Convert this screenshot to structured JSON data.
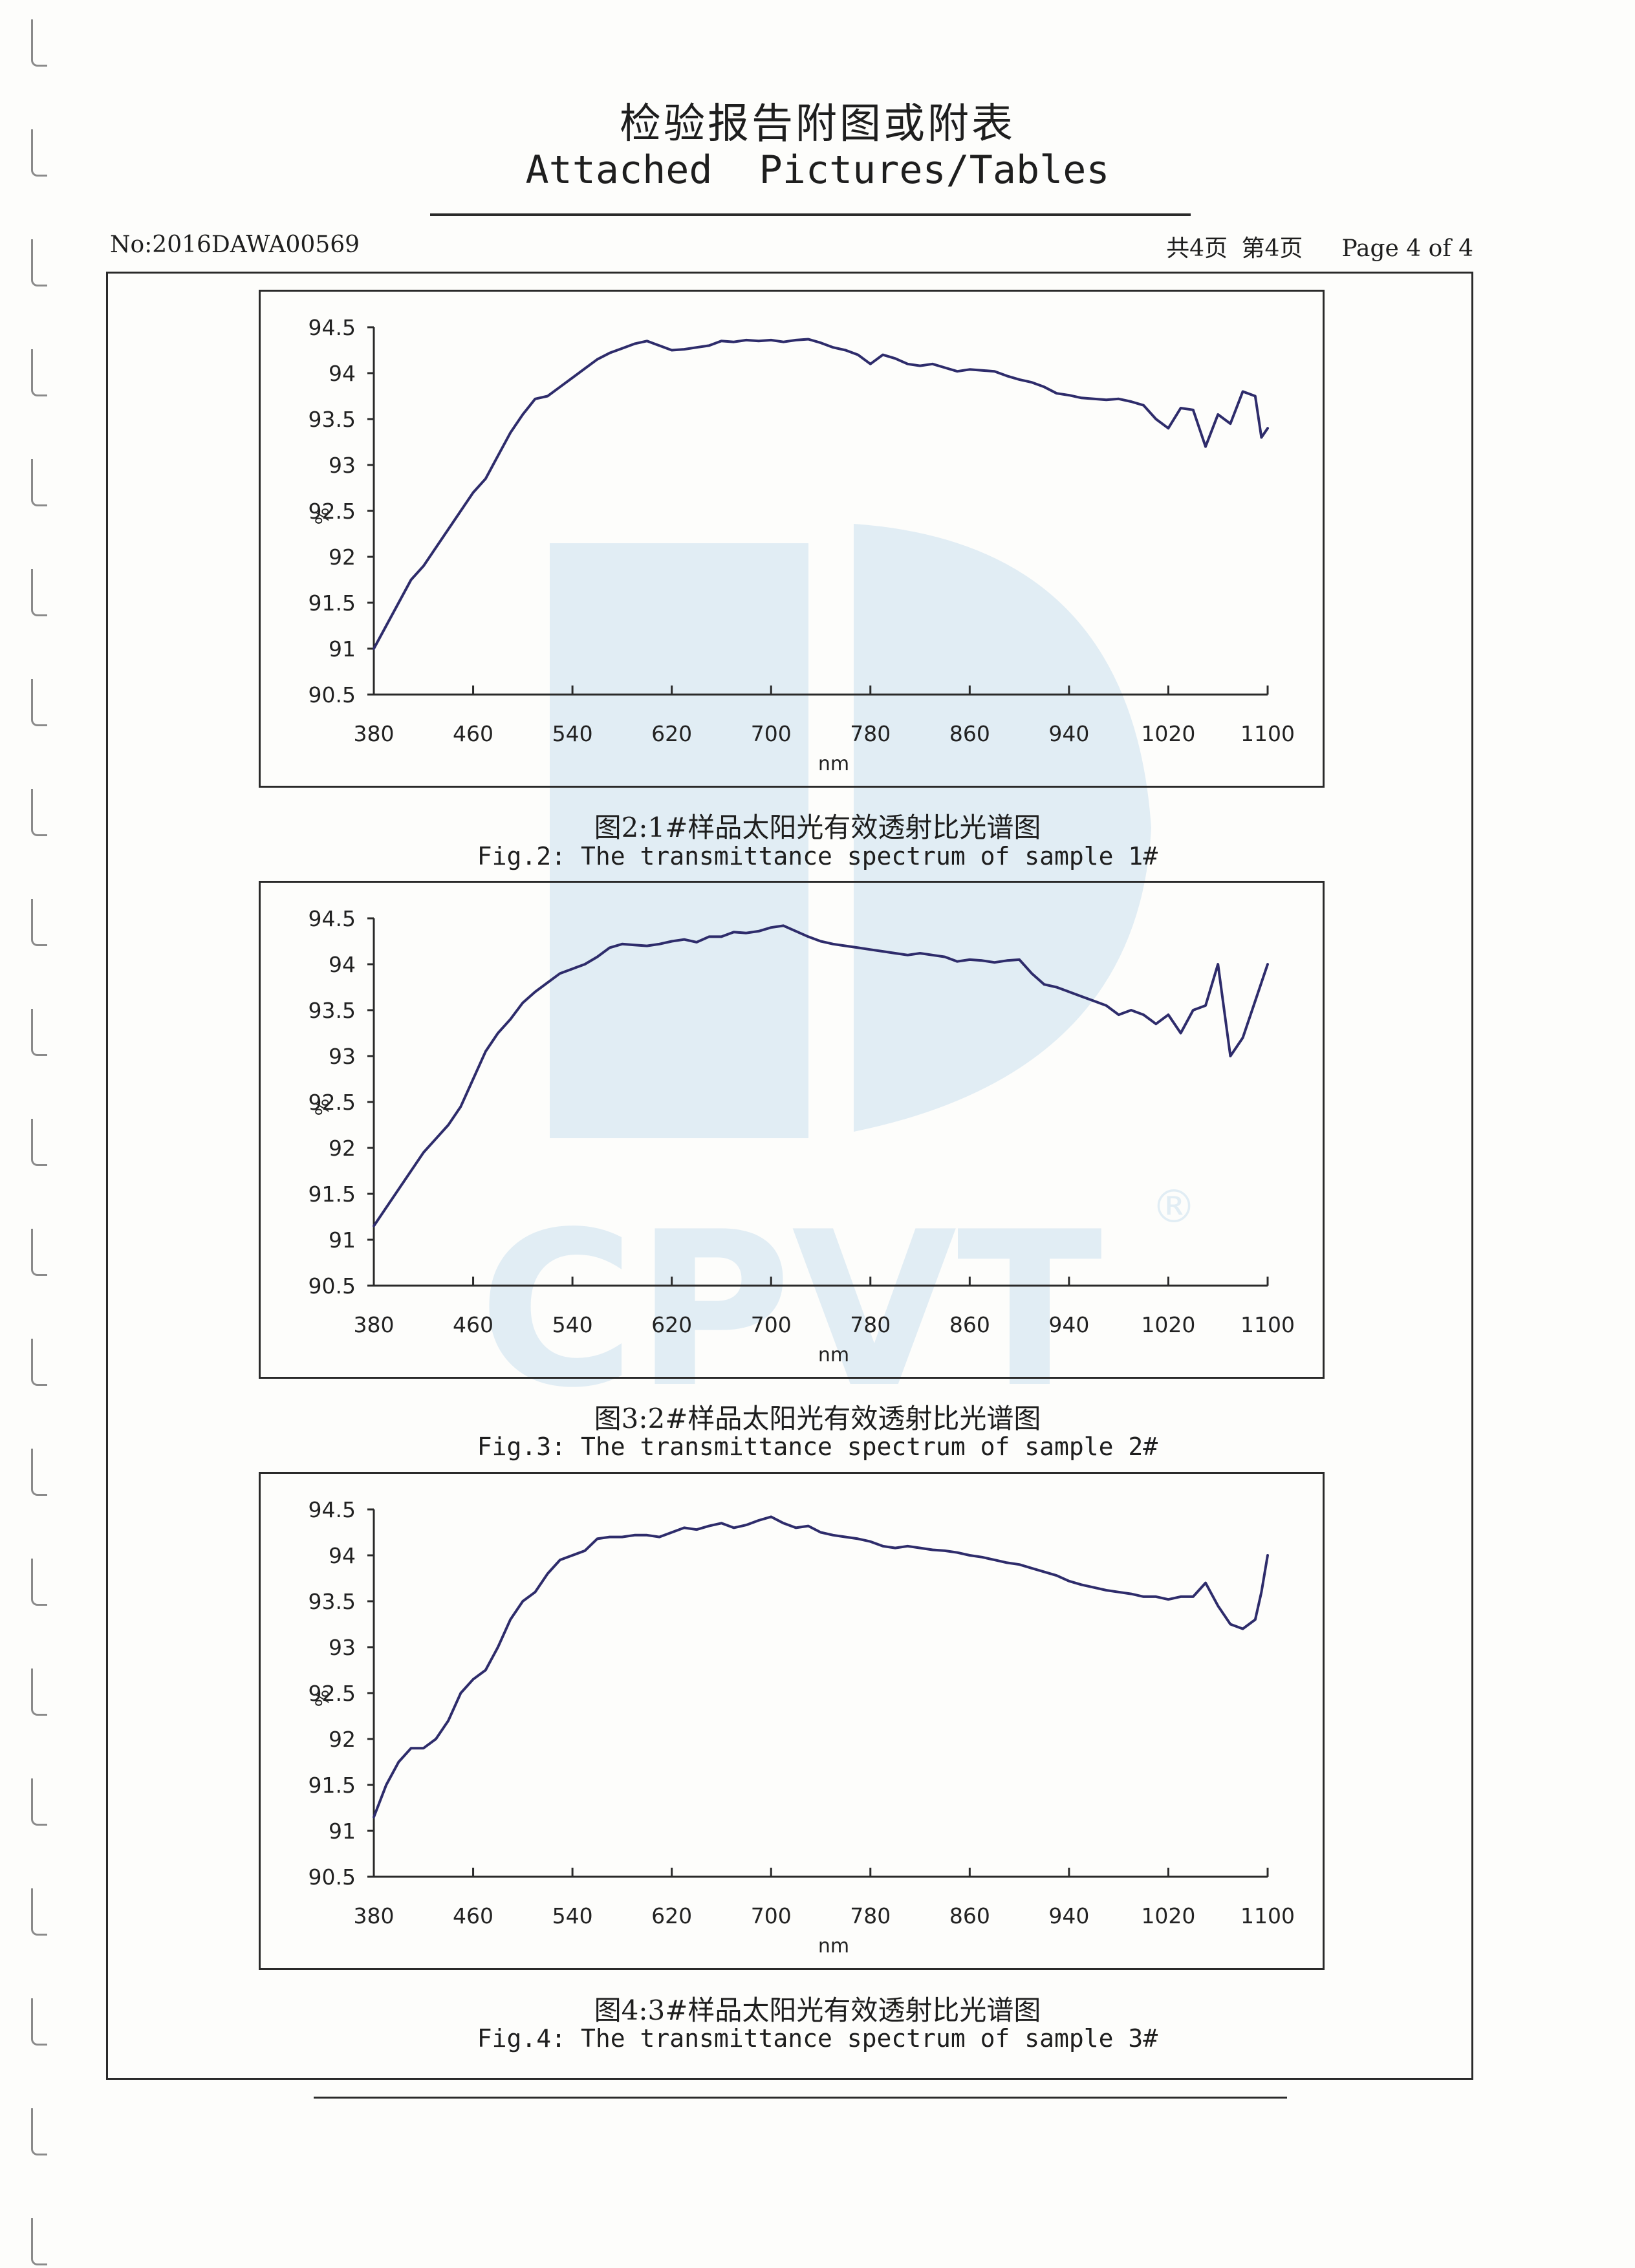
{
  "header": {
    "title_cn": "检验报告附图或附表",
    "title_en": "Attached  Pictures/Tables",
    "report_no": "No:2016DAWA00569",
    "total_pages_cn": "共4页",
    "page_cn": "第4页",
    "page_en": "Page 4 of 4"
  },
  "colors": {
    "line": "#2e2c6b",
    "frame": "#2a2a2a",
    "watermark": "#3d8fd0"
  },
  "watermark": {
    "text": "CPVT",
    "registered": "®"
  },
  "chart_data": [
    {
      "type": "line",
      "caption_cn": "图2:1#样品太阳光有效透射比光谱图",
      "caption_en": "Fig.2: The transmittance spectrum of sample 1#",
      "xlabel": "nm",
      "ylabel": "%",
      "x_ticks": [
        "380",
        "460",
        "540",
        "620",
        "700",
        "780",
        "860",
        "940",
        "1020",
        "1100"
      ],
      "y_ticks": [
        "94.5",
        "94",
        "93.5",
        "93",
        "92.5",
        "92",
        "91.5",
        "91",
        "90.5"
      ],
      "xlim": [
        380,
        1100
      ],
      "ylim": [
        90.5,
        94.5
      ],
      "x": [
        380,
        390,
        400,
        410,
        420,
        430,
        440,
        450,
        460,
        470,
        480,
        490,
        500,
        510,
        520,
        530,
        540,
        550,
        560,
        570,
        580,
        590,
        600,
        610,
        620,
        630,
        640,
        650,
        660,
        670,
        680,
        690,
        700,
        710,
        720,
        730,
        740,
        750,
        760,
        770,
        780,
        790,
        800,
        810,
        820,
        830,
        840,
        850,
        860,
        870,
        880,
        890,
        900,
        910,
        920,
        930,
        940,
        950,
        960,
        970,
        980,
        990,
        1000,
        1010,
        1020,
        1030,
        1040,
        1050,
        1060,
        1070,
        1080,
        1090,
        1095,
        1100
      ],
      "values": [
        91.0,
        91.25,
        91.5,
        91.75,
        91.9,
        92.1,
        92.3,
        92.5,
        92.7,
        92.85,
        93.1,
        93.35,
        93.55,
        93.72,
        93.75,
        93.85,
        93.95,
        94.05,
        94.15,
        94.22,
        94.27,
        94.32,
        94.35,
        94.3,
        94.25,
        94.26,
        94.28,
        94.3,
        94.35,
        94.34,
        94.36,
        94.35,
        94.36,
        94.34,
        94.36,
        94.37,
        94.33,
        94.28,
        94.25,
        94.2,
        94.1,
        94.2,
        94.16,
        94.1,
        94.08,
        94.1,
        94.06,
        94.02,
        94.04,
        94.03,
        94.02,
        93.97,
        93.93,
        93.9,
        93.85,
        93.78,
        93.76,
        93.73,
        93.72,
        93.71,
        93.72,
        93.69,
        93.65,
        93.5,
        93.4,
        93.62,
        93.6,
        93.2,
        93.55,
        93.45,
        93.8,
        93.75,
        93.3,
        93.4
      ]
    },
    {
      "type": "line",
      "caption_cn": "图3:2#样品太阳光有效透射比光谱图",
      "caption_en": "Fig.3: The transmittance spectrum of sample 2#",
      "xlabel": "nm",
      "ylabel": "%",
      "x_ticks": [
        "380",
        "460",
        "540",
        "620",
        "700",
        "780",
        "860",
        "940",
        "1020",
        "1100"
      ],
      "y_ticks": [
        "94.5",
        "94",
        "93.5",
        "93",
        "92.5",
        "92",
        "91.5",
        "91",
        "90.5"
      ],
      "xlim": [
        380,
        1100
      ],
      "ylim": [
        90.5,
        94.5
      ],
      "x": [
        380,
        390,
        400,
        410,
        420,
        430,
        440,
        450,
        460,
        470,
        480,
        490,
        500,
        510,
        520,
        530,
        540,
        550,
        560,
        570,
        580,
        590,
        600,
        610,
        620,
        630,
        640,
        650,
        660,
        670,
        680,
        690,
        700,
        710,
        720,
        730,
        740,
        750,
        760,
        770,
        780,
        790,
        800,
        810,
        820,
        830,
        840,
        850,
        860,
        870,
        880,
        890,
        900,
        910,
        920,
        930,
        940,
        950,
        960,
        970,
        980,
        990,
        1000,
        1010,
        1020,
        1030,
        1040,
        1050,
        1060,
        1070,
        1080,
        1090,
        1095,
        1100
      ],
      "values": [
        91.15,
        91.35,
        91.55,
        91.75,
        91.95,
        92.1,
        92.25,
        92.45,
        92.75,
        93.05,
        93.25,
        93.4,
        93.58,
        93.7,
        93.8,
        93.9,
        93.95,
        94.0,
        94.08,
        94.18,
        94.22,
        94.21,
        94.2,
        94.22,
        94.25,
        94.27,
        94.24,
        94.3,
        94.3,
        94.35,
        94.34,
        94.36,
        94.4,
        94.42,
        94.36,
        94.3,
        94.25,
        94.22,
        94.2,
        94.18,
        94.16,
        94.14,
        94.12,
        94.1,
        94.12,
        94.1,
        94.08,
        94.03,
        94.05,
        94.04,
        94.02,
        94.04,
        94.05,
        93.9,
        93.78,
        93.75,
        93.7,
        93.65,
        93.6,
        93.55,
        93.45,
        93.5,
        93.45,
        93.35,
        93.45,
        93.25,
        93.5,
        93.55,
        94.0,
        93.0,
        93.2,
        93.6,
        93.8,
        94.0
      ]
    },
    {
      "type": "line",
      "caption_cn": "图4:3#样品太阳光有效透射比光谱图",
      "caption_en": "Fig.4: The transmittance spectrum of sample 3#",
      "xlabel": "nm",
      "ylabel": "%",
      "x_ticks": [
        "380",
        "460",
        "540",
        "620",
        "700",
        "780",
        "860",
        "940",
        "1020",
        "1100"
      ],
      "y_ticks": [
        "94.5",
        "94",
        "93.5",
        "93",
        "92.5",
        "92",
        "91.5",
        "91",
        "90.5"
      ],
      "xlim": [
        380,
        1100
      ],
      "ylim": [
        90.5,
        94.5
      ],
      "x": [
        380,
        390,
        400,
        410,
        420,
        430,
        440,
        450,
        460,
        470,
        480,
        490,
        500,
        510,
        520,
        530,
        540,
        550,
        560,
        570,
        580,
        590,
        600,
        610,
        620,
        630,
        640,
        650,
        660,
        670,
        680,
        690,
        700,
        710,
        720,
        730,
        740,
        750,
        760,
        770,
        780,
        790,
        800,
        810,
        820,
        830,
        840,
        850,
        860,
        870,
        880,
        890,
        900,
        910,
        920,
        930,
        940,
        950,
        960,
        970,
        980,
        990,
        1000,
        1010,
        1020,
        1030,
        1040,
        1050,
        1060,
        1070,
        1080,
        1090,
        1095,
        1100
      ],
      "values": [
        91.15,
        91.5,
        91.75,
        91.9,
        91.9,
        92.0,
        92.2,
        92.5,
        92.65,
        92.75,
        93.0,
        93.3,
        93.5,
        93.6,
        93.8,
        93.95,
        94.0,
        94.05,
        94.18,
        94.2,
        94.2,
        94.22,
        94.22,
        94.2,
        94.25,
        94.3,
        94.28,
        94.32,
        94.35,
        94.3,
        94.33,
        94.38,
        94.42,
        94.35,
        94.3,
        94.32,
        94.25,
        94.22,
        94.2,
        94.18,
        94.15,
        94.1,
        94.08,
        94.1,
        94.08,
        94.06,
        94.05,
        94.03,
        94.0,
        93.98,
        93.95,
        93.92,
        93.9,
        93.86,
        93.82,
        93.78,
        93.72,
        93.68,
        93.65,
        93.62,
        93.6,
        93.58,
        93.55,
        93.55,
        93.52,
        93.55,
        93.55,
        93.7,
        93.45,
        93.25,
        93.2,
        93.3,
        93.6,
        94.0
      ]
    }
  ]
}
